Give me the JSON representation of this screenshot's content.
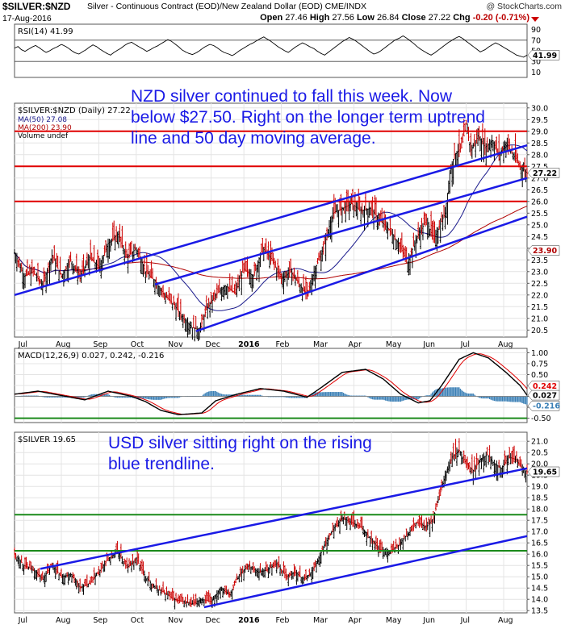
{
  "header": {
    "symbol": "$SILVER:$NZD",
    "description": "Silver - Continuous Contract (EOD)/New Zealand Dollar (EOD) CME/INDX",
    "credit": "@ StockCharts.com",
    "date": "17-Aug-2016",
    "open_label": "Open",
    "open": "27.46",
    "high_label": "High",
    "high": "27.56",
    "low_label": "Low",
    "low": "26.84",
    "close_label": "Close",
    "close": "27.22",
    "chg_label": "Chg",
    "chg": "-0.20 (-0.71%)"
  },
  "annotations": {
    "nzd": "NZD silver continued to fall this week. Now below $27.50. Right on the longer term uptrend line and 50 day moving average.",
    "usd": "USD silver sitting right on the rising blue trendline."
  },
  "colors": {
    "up_candle": "#000000",
    "down_candle": "#cc0000",
    "trendline": "#1a1ae6",
    "support_red": "#e00000",
    "support_green": "#1a8a1a",
    "ma50": "#1a1a8c",
    "ma200": "#b00000",
    "macd_hist": "#3a7fb5",
    "rsi_fill": "#5a8a5a"
  },
  "chart_data": [
    {
      "type": "line",
      "name": "RSI",
      "title": "RSI(14) 41.99",
      "last": 41.99,
      "ylim": [
        0,
        100
      ],
      "tick_labels": [
        "90",
        "70",
        "50",
        "30",
        "10"
      ],
      "reference_lines": [
        70,
        30
      ],
      "values": [
        55,
        58,
        52,
        49,
        53,
        57,
        60,
        56,
        51,
        47,
        50,
        54,
        58,
        62,
        59,
        55,
        50,
        46,
        44,
        48,
        52,
        57,
        61,
        58,
        53,
        49,
        45,
        42,
        47,
        51,
        55,
        60,
        64,
        66,
        62,
        58,
        53,
        49,
        52,
        56,
        59,
        63,
        67,
        71,
        68,
        63,
        58,
        52,
        48,
        45,
        43,
        46,
        50,
        55,
        59,
        62,
        60,
        56,
        51,
        47,
        44,
        41,
        45,
        50,
        54,
        58,
        62,
        65,
        69,
        73,
        76,
        72,
        68,
        63,
        58,
        54,
        50,
        47,
        52,
        57,
        61,
        65,
        62,
        58,
        54,
        49,
        45,
        42,
        47,
        52,
        57,
        62,
        67,
        71,
        75,
        72,
        68,
        63,
        58,
        53,
        48,
        44,
        46,
        50,
        55,
        60,
        65,
        70,
        74,
        78,
        74,
        69,
        64,
        58,
        53,
        49,
        45,
        42,
        46,
        51,
        56,
        61,
        66,
        70,
        74,
        77,
        73,
        68,
        63,
        58,
        53,
        48,
        52,
        57,
        61,
        65,
        62,
        58,
        54,
        50,
        46,
        42,
        40,
        38,
        42
      ]
    },
    {
      "type": "candlestick",
      "name": "$SILVER:$NZD",
      "title": "$SILVER:$NZD (Daily) 27.22",
      "legend": [
        "MA(50) 27.08",
        "MA(200) 23.90",
        "Volume undef"
      ],
      "last": 27.22,
      "ma50_last": 27.08,
      "ma200_last": 23.9,
      "ylim": [
        20.2,
        30.2
      ],
      "y_ticks": [
        20.5,
        21.0,
        21.5,
        22.0,
        22.5,
        23.0,
        23.5,
        24.0,
        24.5,
        25.0,
        25.5,
        26.0,
        26.5,
        27.0,
        27.5,
        28.0,
        28.5,
        29.0,
        29.5,
        30.0
      ],
      "x_labels": [
        "Jul",
        "Aug",
        "Sep",
        "Oct",
        "Nov",
        "Dec",
        "2016",
        "Feb",
        "Mar",
        "Apr",
        "May",
        "Jun",
        "Jul",
        "Aug"
      ],
      "horizontal_lines": [
        29.0,
        27.5,
        26.0
      ],
      "anchors": [
        [
          0,
          23.8
        ],
        [
          8,
          22.8
        ],
        [
          16,
          23.0
        ],
        [
          24,
          22.4
        ],
        [
          32,
          23.7
        ],
        [
          40,
          22.8
        ],
        [
          48,
          23.5
        ],
        [
          56,
          22.8
        ],
        [
          64,
          23.6
        ],
        [
          72,
          23.2
        ],
        [
          80,
          24.2
        ],
        [
          88,
          24.6
        ],
        [
          96,
          23.6
        ],
        [
          104,
          24.0
        ],
        [
          112,
          23.0
        ],
        [
          120,
          22.6
        ],
        [
          128,
          22.0
        ],
        [
          136,
          21.6
        ],
        [
          144,
          21.0
        ],
        [
          152,
          20.6
        ],
        [
          158,
          20.5
        ],
        [
          164,
          21.4
        ],
        [
          172,
          22.0
        ],
        [
          180,
          22.4
        ],
        [
          188,
          22.1
        ],
        [
          196,
          23.1
        ],
        [
          204,
          22.8
        ],
        [
          212,
          24.0
        ],
        [
          220,
          23.5
        ],
        [
          228,
          22.7
        ],
        [
          236,
          23.0
        ],
        [
          244,
          22.4
        ],
        [
          250,
          22.0
        ],
        [
          256,
          23.0
        ],
        [
          264,
          24.0
        ],
        [
          272,
          25.5
        ],
        [
          280,
          25.7
        ],
        [
          288,
          25.9
        ],
        [
          296,
          25.6
        ],
        [
          304,
          25.7
        ],
        [
          312,
          25.2
        ],
        [
          320,
          24.8
        ],
        [
          328,
          24.2
        ],
        [
          336,
          23.4
        ],
        [
          344,
          24.5
        ],
        [
          352,
          25.2
        ],
        [
          358,
          24.4
        ],
        [
          362,
          24.8
        ],
        [
          368,
          25.5
        ],
        [
          372,
          27.2
        ],
        [
          376,
          28.0
        ],
        [
          382,
          28.3
        ],
        [
          386,
          29.3
        ],
        [
          390,
          28.2
        ],
        [
          396,
          28.8
        ],
        [
          402,
          28.3
        ],
        [
          408,
          28.6
        ],
        [
          414,
          28.0
        ],
        [
          420,
          28.5
        ],
        [
          426,
          28.0
        ],
        [
          432,
          27.5
        ],
        [
          438,
          27.2
        ]
      ],
      "trendlines": [
        [
          [
            0,
            22.0
          ],
          [
            438,
            28.4
          ]
        ],
        [
          [
            120,
            22.45
          ],
          [
            438,
            27.0
          ]
        ],
        [
          [
            155,
            20.45
          ],
          [
            438,
            25.35
          ]
        ]
      ]
    },
    {
      "type": "line",
      "name": "MACD",
      "title": "MACD(12,26,9) 0.027, 0.242, -0.216",
      "macd_last": 0.027,
      "signal_last": 0.242,
      "hist_last": -0.216,
      "ylim": [
        -0.6,
        1.1
      ],
      "y_ticks": [
        1.0,
        0.75,
        0.5,
        0.25,
        0.0,
        -0.25,
        -0.5
      ],
      "reference_lines": [
        -0.5
      ],
      "anchors": [
        [
          0,
          0.05
        ],
        [
          20,
          0.12
        ],
        [
          40,
          0.02
        ],
        [
          60,
          -0.08
        ],
        [
          80,
          0.12
        ],
        [
          100,
          0.0
        ],
        [
          112,
          -0.12
        ],
        [
          125,
          -0.32
        ],
        [
          140,
          -0.42
        ],
        [
          160,
          -0.38
        ],
        [
          172,
          -0.1
        ],
        [
          190,
          0.05
        ],
        [
          210,
          0.18
        ],
        [
          230,
          0.12
        ],
        [
          250,
          -0.02
        ],
        [
          262,
          0.2
        ],
        [
          280,
          0.55
        ],
        [
          300,
          0.62
        ],
        [
          315,
          0.4
        ],
        [
          330,
          0.05
        ],
        [
          345,
          -0.15
        ],
        [
          355,
          -0.1
        ],
        [
          365,
          0.25
        ],
        [
          380,
          0.85
        ],
        [
          392,
          1.0
        ],
        [
          405,
          0.88
        ],
        [
          420,
          0.55
        ],
        [
          432,
          0.25
        ],
        [
          438,
          0.027
        ]
      ]
    },
    {
      "type": "candlestick",
      "name": "$SILVER",
      "title": "$SILVER 19.65",
      "last": 19.65,
      "ylim": [
        13.4,
        21.4
      ],
      "y_ticks": [
        13.5,
        14.0,
        14.5,
        15.0,
        15.5,
        16.0,
        16.5,
        17.0,
        17.5,
        18.0,
        18.5,
        19.0,
        19.5,
        20.0,
        20.5,
        21.0
      ],
      "x_labels": [
        "Jul",
        "Aug",
        "Sep",
        "Oct",
        "Nov",
        "Dec",
        "2016",
        "Feb",
        "Mar",
        "Apr",
        "May",
        "Jun",
        "Jul",
        "Aug"
      ],
      "horizontal_lines": [
        17.75,
        16.15
      ],
      "anchors": [
        [
          0,
          16.0
        ],
        [
          8,
          15.5
        ],
        [
          16,
          15.3
        ],
        [
          24,
          14.9
        ],
        [
          32,
          15.5
        ],
        [
          40,
          15.0
        ],
        [
          48,
          15.1
        ],
        [
          56,
          14.5
        ],
        [
          64,
          14.7
        ],
        [
          72,
          15.2
        ],
        [
          80,
          15.8
        ],
        [
          88,
          16.1
        ],
        [
          96,
          15.4
        ],
        [
          104,
          15.8
        ],
        [
          112,
          15.0
        ],
        [
          120,
          14.5
        ],
        [
          128,
          14.3
        ],
        [
          136,
          14.0
        ],
        [
          144,
          13.9
        ],
        [
          152,
          13.8
        ],
        [
          160,
          14.0
        ],
        [
          168,
          13.9
        ],
        [
          176,
          14.5
        ],
        [
          184,
          14.2
        ],
        [
          192,
          15.1
        ],
        [
          200,
          15.5
        ],
        [
          208,
          15.2
        ],
        [
          216,
          15.3
        ],
        [
          224,
          15.6
        ],
        [
          232,
          15.0
        ],
        [
          240,
          15.2
        ],
        [
          246,
          14.9
        ],
        [
          252,
          15.1
        ],
        [
          258,
          15.6
        ],
        [
          264,
          16.3
        ],
        [
          272,
          17.1
        ],
        [
          280,
          17.6
        ],
        [
          288,
          17.4
        ],
        [
          296,
          17.2
        ],
        [
          304,
          16.7
        ],
        [
          312,
          16.2
        ],
        [
          320,
          16.1
        ],
        [
          328,
          16.4
        ],
        [
          336,
          16.9
        ],
        [
          344,
          17.4
        ],
        [
          352,
          17.2
        ],
        [
          358,
          17.6
        ],
        [
          362,
          18.4
        ],
        [
          368,
          19.5
        ],
        [
          374,
          20.3
        ],
        [
          380,
          20.6
        ],
        [
          386,
          20.0
        ],
        [
          392,
          19.7
        ],
        [
          398,
          20.2
        ],
        [
          404,
          20.4
        ],
        [
          410,
          20.0
        ],
        [
          416,
          19.8
        ],
        [
          422,
          20.3
        ],
        [
          428,
          20.2
        ],
        [
          434,
          19.8
        ],
        [
          438,
          19.65
        ]
      ],
      "trendlines": [
        [
          [
            22,
            15.35
          ],
          [
            438,
            19.8
          ]
        ],
        [
          [
            162,
            13.65
          ],
          [
            438,
            16.8
          ]
        ]
      ]
    }
  ]
}
